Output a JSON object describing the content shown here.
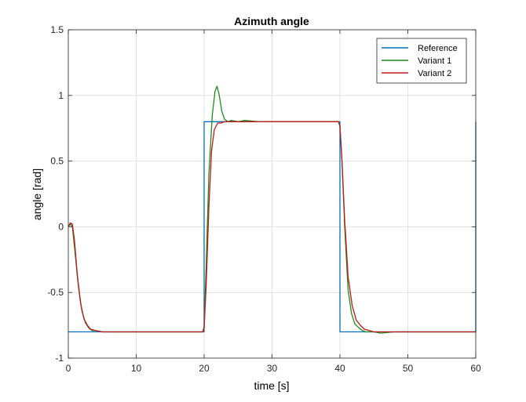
{
  "chart_data": {
    "type": "line",
    "title": "Azimuth angle",
    "xlabel": "time [s]",
    "ylabel": "angle [rad]",
    "xlim": [
      0,
      60
    ],
    "ylim": [
      -1,
      1.5
    ],
    "xticks": [
      "0",
      "10",
      "20",
      "30",
      "40",
      "50",
      "60"
    ],
    "yticks": [
      "-1",
      "-0.5",
      "0",
      "0.5",
      "1",
      "1.5"
    ],
    "grid": true,
    "legend_position": "top-right",
    "series": [
      {
        "name": "Reference",
        "color": "#0072BD",
        "x": [
          0,
          20,
          20,
          40,
          40,
          60,
          60
        ],
        "y": [
          -0.8,
          -0.8,
          0.8,
          0.8,
          -0.8,
          -0.8,
          0.8
        ]
      },
      {
        "name": "Variant 1",
        "color": "#1E8C1E",
        "x": [
          0,
          0.3,
          0.6,
          1.0,
          1.5,
          2.0,
          2.5,
          3.0,
          3.5,
          4.0,
          5.0,
          6.0,
          8.0,
          10.0,
          15.0,
          19.8,
          20.0,
          20.3,
          20.7,
          21.2,
          21.6,
          21.9,
          22.2,
          22.6,
          23.0,
          23.5,
          24.0,
          25.0,
          26.0,
          28.0,
          30.0,
          35.0,
          39.8,
          40.0,
          40.3,
          40.7,
          41.2,
          41.7,
          42.2,
          42.8,
          43.3,
          43.8,
          44.5,
          45.0,
          46.0,
          48.0,
          50.0,
          55.0,
          60.0
        ],
        "y": [
          0.0,
          0.02,
          0.0,
          -0.2,
          -0.46,
          -0.64,
          -0.73,
          -0.77,
          -0.79,
          -0.79,
          -0.8,
          -0.8,
          -0.8,
          -0.8,
          -0.8,
          -0.8,
          -0.76,
          -0.3,
          0.4,
          0.85,
          1.03,
          1.07,
          1.01,
          0.88,
          0.82,
          0.8,
          0.81,
          0.8,
          0.81,
          0.8,
          0.8,
          0.8,
          0.8,
          0.76,
          0.5,
          0.0,
          -0.48,
          -0.66,
          -0.74,
          -0.77,
          -0.79,
          -0.8,
          -0.8,
          -0.8,
          -0.81,
          -0.8,
          -0.8,
          -0.8,
          -0.8
        ]
      },
      {
        "name": "Variant 2",
        "color": "#C0161C",
        "x": [
          0,
          0.3,
          0.6,
          0.9,
          1.3,
          1.8,
          2.3,
          2.8,
          3.3,
          4.0,
          5.0,
          6.0,
          8.0,
          10.0,
          15.0,
          19.8,
          20.0,
          20.3,
          20.7,
          21.1,
          21.5,
          22.0,
          22.5,
          23.0,
          24.0,
          26.0,
          28.0,
          30.0,
          35.0,
          39.8,
          40.0,
          40.3,
          40.7,
          41.2,
          41.8,
          42.4,
          43.0,
          43.6,
          44.3,
          45.0,
          46.0,
          48.0,
          50.0,
          55.0,
          60.0
        ],
        "y": [
          0.0,
          0.03,
          0.02,
          -0.1,
          -0.35,
          -0.58,
          -0.7,
          -0.75,
          -0.78,
          -0.79,
          -0.8,
          -0.8,
          -0.8,
          -0.8,
          -0.8,
          -0.8,
          -0.77,
          -0.45,
          0.15,
          0.58,
          0.74,
          0.79,
          0.79,
          0.8,
          0.8,
          0.8,
          0.8,
          0.8,
          0.8,
          0.8,
          0.77,
          0.5,
          0.05,
          -0.38,
          -0.6,
          -0.71,
          -0.75,
          -0.78,
          -0.79,
          -0.8,
          -0.8,
          -0.8,
          -0.8,
          -0.8,
          -0.8
        ]
      }
    ]
  }
}
